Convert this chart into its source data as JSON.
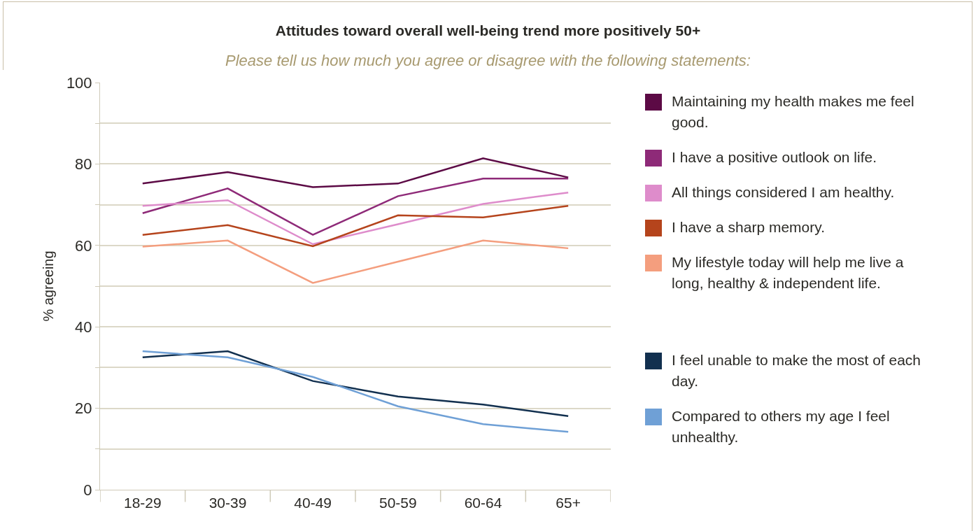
{
  "chart_data": {
    "type": "line",
    "title": "Attitudes toward overall well-being trend more positively 50+",
    "subtitle": "Please tell us how much you agree or disagree with the following statements:",
    "ylabel": "% agreeing",
    "categories": [
      "18-29",
      "30-39",
      "40-49",
      "50-59",
      "60-64",
      "65+"
    ],
    "series": [
      {
        "name": "Maintaining my health makes me feel good.",
        "color": "#5c0a45",
        "values": [
          75.2,
          78.0,
          74.3,
          75.2,
          81.4,
          76.7
        ]
      },
      {
        "name": "I have a positive outlook on life.",
        "color": "#8e2a78",
        "values": [
          67.9,
          74.0,
          62.6,
          72.1,
          76.4,
          76.4
        ]
      },
      {
        "name": "All things considered I am healthy.",
        "color": "#de8ccb",
        "values": [
          69.7,
          71.1,
          60.3,
          65.2,
          70.2,
          73.0
        ]
      },
      {
        "name": "I have a sharp memory.",
        "color": "#b5441c",
        "values": [
          62.6,
          65.0,
          59.8,
          67.4,
          66.9,
          69.7
        ]
      },
      {
        "name": "My lifestyle today will help me live a long, healthy & independent life.",
        "color": "#f49e7e",
        "values": [
          59.7,
          61.2,
          50.8,
          56.0,
          61.2,
          59.3
        ]
      },
      {
        "name": "I feel unable to make the most of each day.",
        "color": "#12304f",
        "values": [
          32.5,
          34.0,
          26.7,
          22.9,
          20.9,
          18.1
        ]
      },
      {
        "name": "Compared to others my age I feel unhealthy.",
        "color": "#6fa0d6",
        "values": [
          34.0,
          32.5,
          27.7,
          20.5,
          16.1,
          14.2
        ]
      }
    ],
    "ylim": [
      0,
      100
    ],
    "yticks": [
      0,
      {
        "value": 10,
        "label": null
      },
      20,
      {
        "value": 30,
        "label": null
      },
      40,
      {
        "value": 50,
        "label": null
      },
      60,
      {
        "value": 70,
        "label": null
      },
      80,
      {
        "value": 90,
        "label": null
      },
      100
    ],
    "grid": "y",
    "legend": "right",
    "marker": "none",
    "line_style": "solid"
  }
}
